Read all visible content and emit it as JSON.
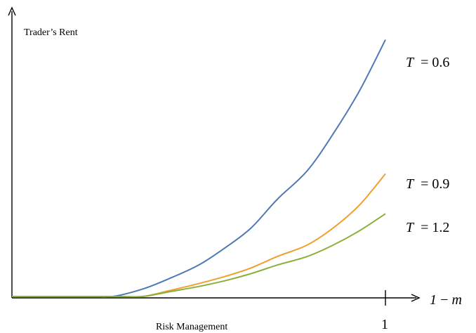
{
  "chart_data": {
    "type": "line",
    "ylabel": "Trader’s Rent",
    "xlabel_left": "Risk Management",
    "xlabel_right": "1 − m",
    "x_tick_labels": [
      "1"
    ],
    "xlim": [
      0,
      1
    ],
    "ylim": [
      0,
      1
    ],
    "grid": false,
    "series": [
      {
        "name": "T = 0.6",
        "label_var": "T",
        "label_val": "= 0.6",
        "color": "#4f79b4",
        "x": [
          0,
          0.07,
          0.14,
          0.21,
          0.27,
          0.35,
          0.42,
          0.5,
          0.57,
          0.64,
          0.71,
          0.79,
          0.86,
          0.93,
          1.0
        ],
        "y": [
          0.0,
          0.0,
          0.0,
          0.0,
          0.0,
          0.026,
          0.062,
          0.11,
          0.17,
          0.24,
          0.34,
          0.44,
          0.57,
          0.72,
          0.9
        ]
      },
      {
        "name": "T = 0.9",
        "label_var": "T",
        "label_val": "= 0.9",
        "color": "#f0a030",
        "x": [
          0,
          0.07,
          0.14,
          0.21,
          0.28,
          0.35,
          0.42,
          0.5,
          0.57,
          0.64,
          0.71,
          0.79,
          0.86,
          0.93,
          1.0
        ],
        "y": [
          0.0,
          0.0,
          0.0,
          0.0,
          0.0,
          0.0,
          0.02,
          0.045,
          0.07,
          0.1,
          0.14,
          0.18,
          0.24,
          0.32,
          0.43
        ]
      },
      {
        "name": "T = 1.2",
        "label_var": "T",
        "label_val": "= 1.2",
        "color": "#8ab03c",
        "x": [
          0,
          0.07,
          0.14,
          0.21,
          0.28,
          0.35,
          0.42,
          0.5,
          0.57,
          0.64,
          0.71,
          0.79,
          0.86,
          0.93,
          1.0
        ],
        "y": [
          0.0,
          0.0,
          0.0,
          0.0,
          0.0,
          0.0,
          0.016,
          0.035,
          0.055,
          0.08,
          0.11,
          0.14,
          0.18,
          0.23,
          0.29
        ]
      }
    ]
  }
}
